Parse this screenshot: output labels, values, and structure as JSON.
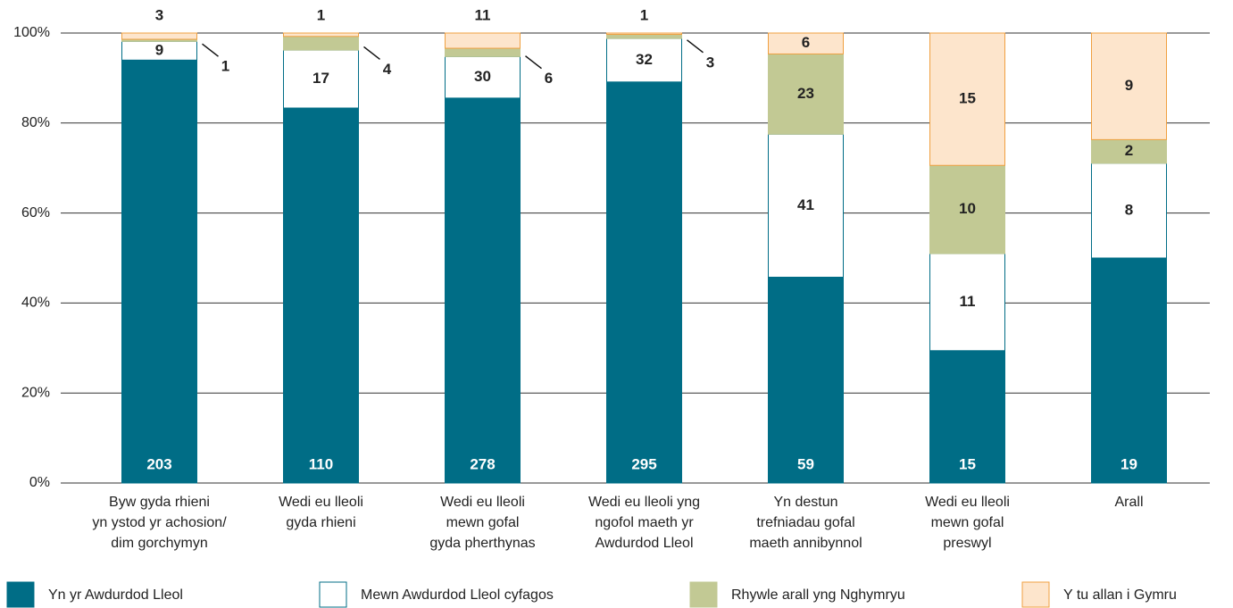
{
  "chart_data": {
    "type": "bar",
    "stacking": "percent",
    "categories": [
      [
        "Byw gyda rhieni",
        "yn ystod yr achosion/",
        "dim gorchymyn"
      ],
      [
        "Wedi eu lleoli",
        "gyda rhieni"
      ],
      [
        "Wedi eu lleoli",
        "mewn gofal",
        "gyda pherthynas"
      ],
      [
        "Wedi eu lleoli yng",
        "ngofol maeth yr",
        "Awdurdod Lleol"
      ],
      [
        "Yn destun",
        "trefniadau gofal",
        "maeth annibynnol"
      ],
      [
        "Wedi eu lleoli",
        "mewn gofal",
        "preswyl"
      ],
      [
        "Arall"
      ]
    ],
    "series": [
      {
        "name": "Yn yr Awdurdod Lleol",
        "color": "#006d86",
        "stroke": "#006d86",
        "values": [
          203,
          110,
          278,
          295,
          59,
          15,
          19
        ]
      },
      {
        "name": "Mewn Awdurdod Lleol cyfagos",
        "color": "#ffffff",
        "stroke": "#006d86",
        "values": [
          9,
          17,
          30,
          32,
          41,
          11,
          8
        ]
      },
      {
        "name": "Rhywle arall yng Nghymryu",
        "color": "#c2c994",
        "stroke": "#c2c994",
        "values": [
          1,
          4,
          6,
          3,
          23,
          10,
          2
        ]
      },
      {
        "name": "Y tu allan i Gymru",
        "color": "#fde5cc",
        "stroke": "#f0a040",
        "values": [
          3,
          1,
          11,
          1,
          6,
          15,
          9
        ]
      }
    ],
    "ylim": [
      0,
      100
    ],
    "yticks": [
      {
        "value": 0,
        "label": "0%"
      },
      {
        "value": 20,
        "label": "20%"
      },
      {
        "value": 40,
        "label": "40%"
      },
      {
        "value": 60,
        "label": "60%"
      },
      {
        "value": 80,
        "label": "80%"
      },
      {
        "value": 100,
        "label": "100%"
      }
    ],
    "grid": true,
    "legend": "bottom"
  }
}
